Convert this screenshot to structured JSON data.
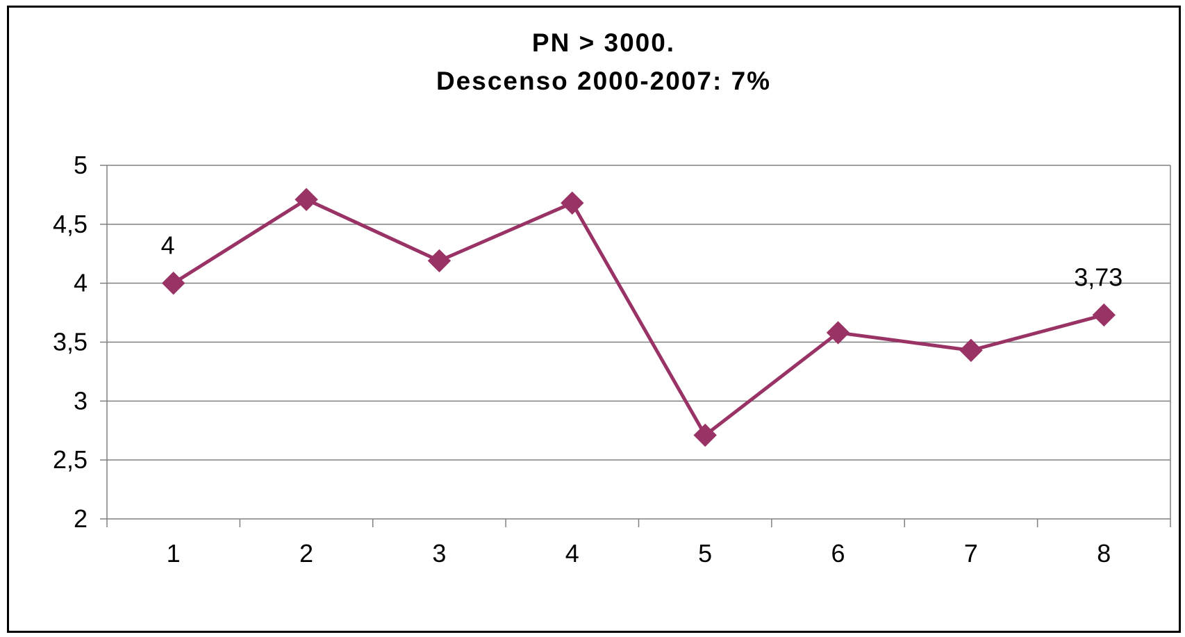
{
  "chart_data": {
    "type": "line",
    "title": "PN > 3000.",
    "subtitle": "Descenso 2000-2007: 7%",
    "xlabel": "",
    "ylabel": "",
    "categories": [
      "1",
      "2",
      "3",
      "4",
      "5",
      "6",
      "7",
      "8"
    ],
    "series": [
      {
        "values": [
          4.0,
          4.71,
          4.19,
          4.68,
          2.71,
          3.58,
          3.43,
          3.73
        ],
        "color": "#993366",
        "marker": "diamond"
      }
    ],
    "data_labels": [
      {
        "index": 0,
        "text": "4"
      },
      {
        "index": 7,
        "text": "3,73"
      }
    ],
    "ylim": [
      2,
      5
    ],
    "yticks": [
      2,
      2.5,
      3,
      3.5,
      4,
      4.5,
      5
    ],
    "ytick_labels": [
      "2",
      "2,5",
      "3",
      "3,5",
      "4",
      "4,5",
      "5"
    ],
    "grid": true,
    "legend": "none"
  }
}
